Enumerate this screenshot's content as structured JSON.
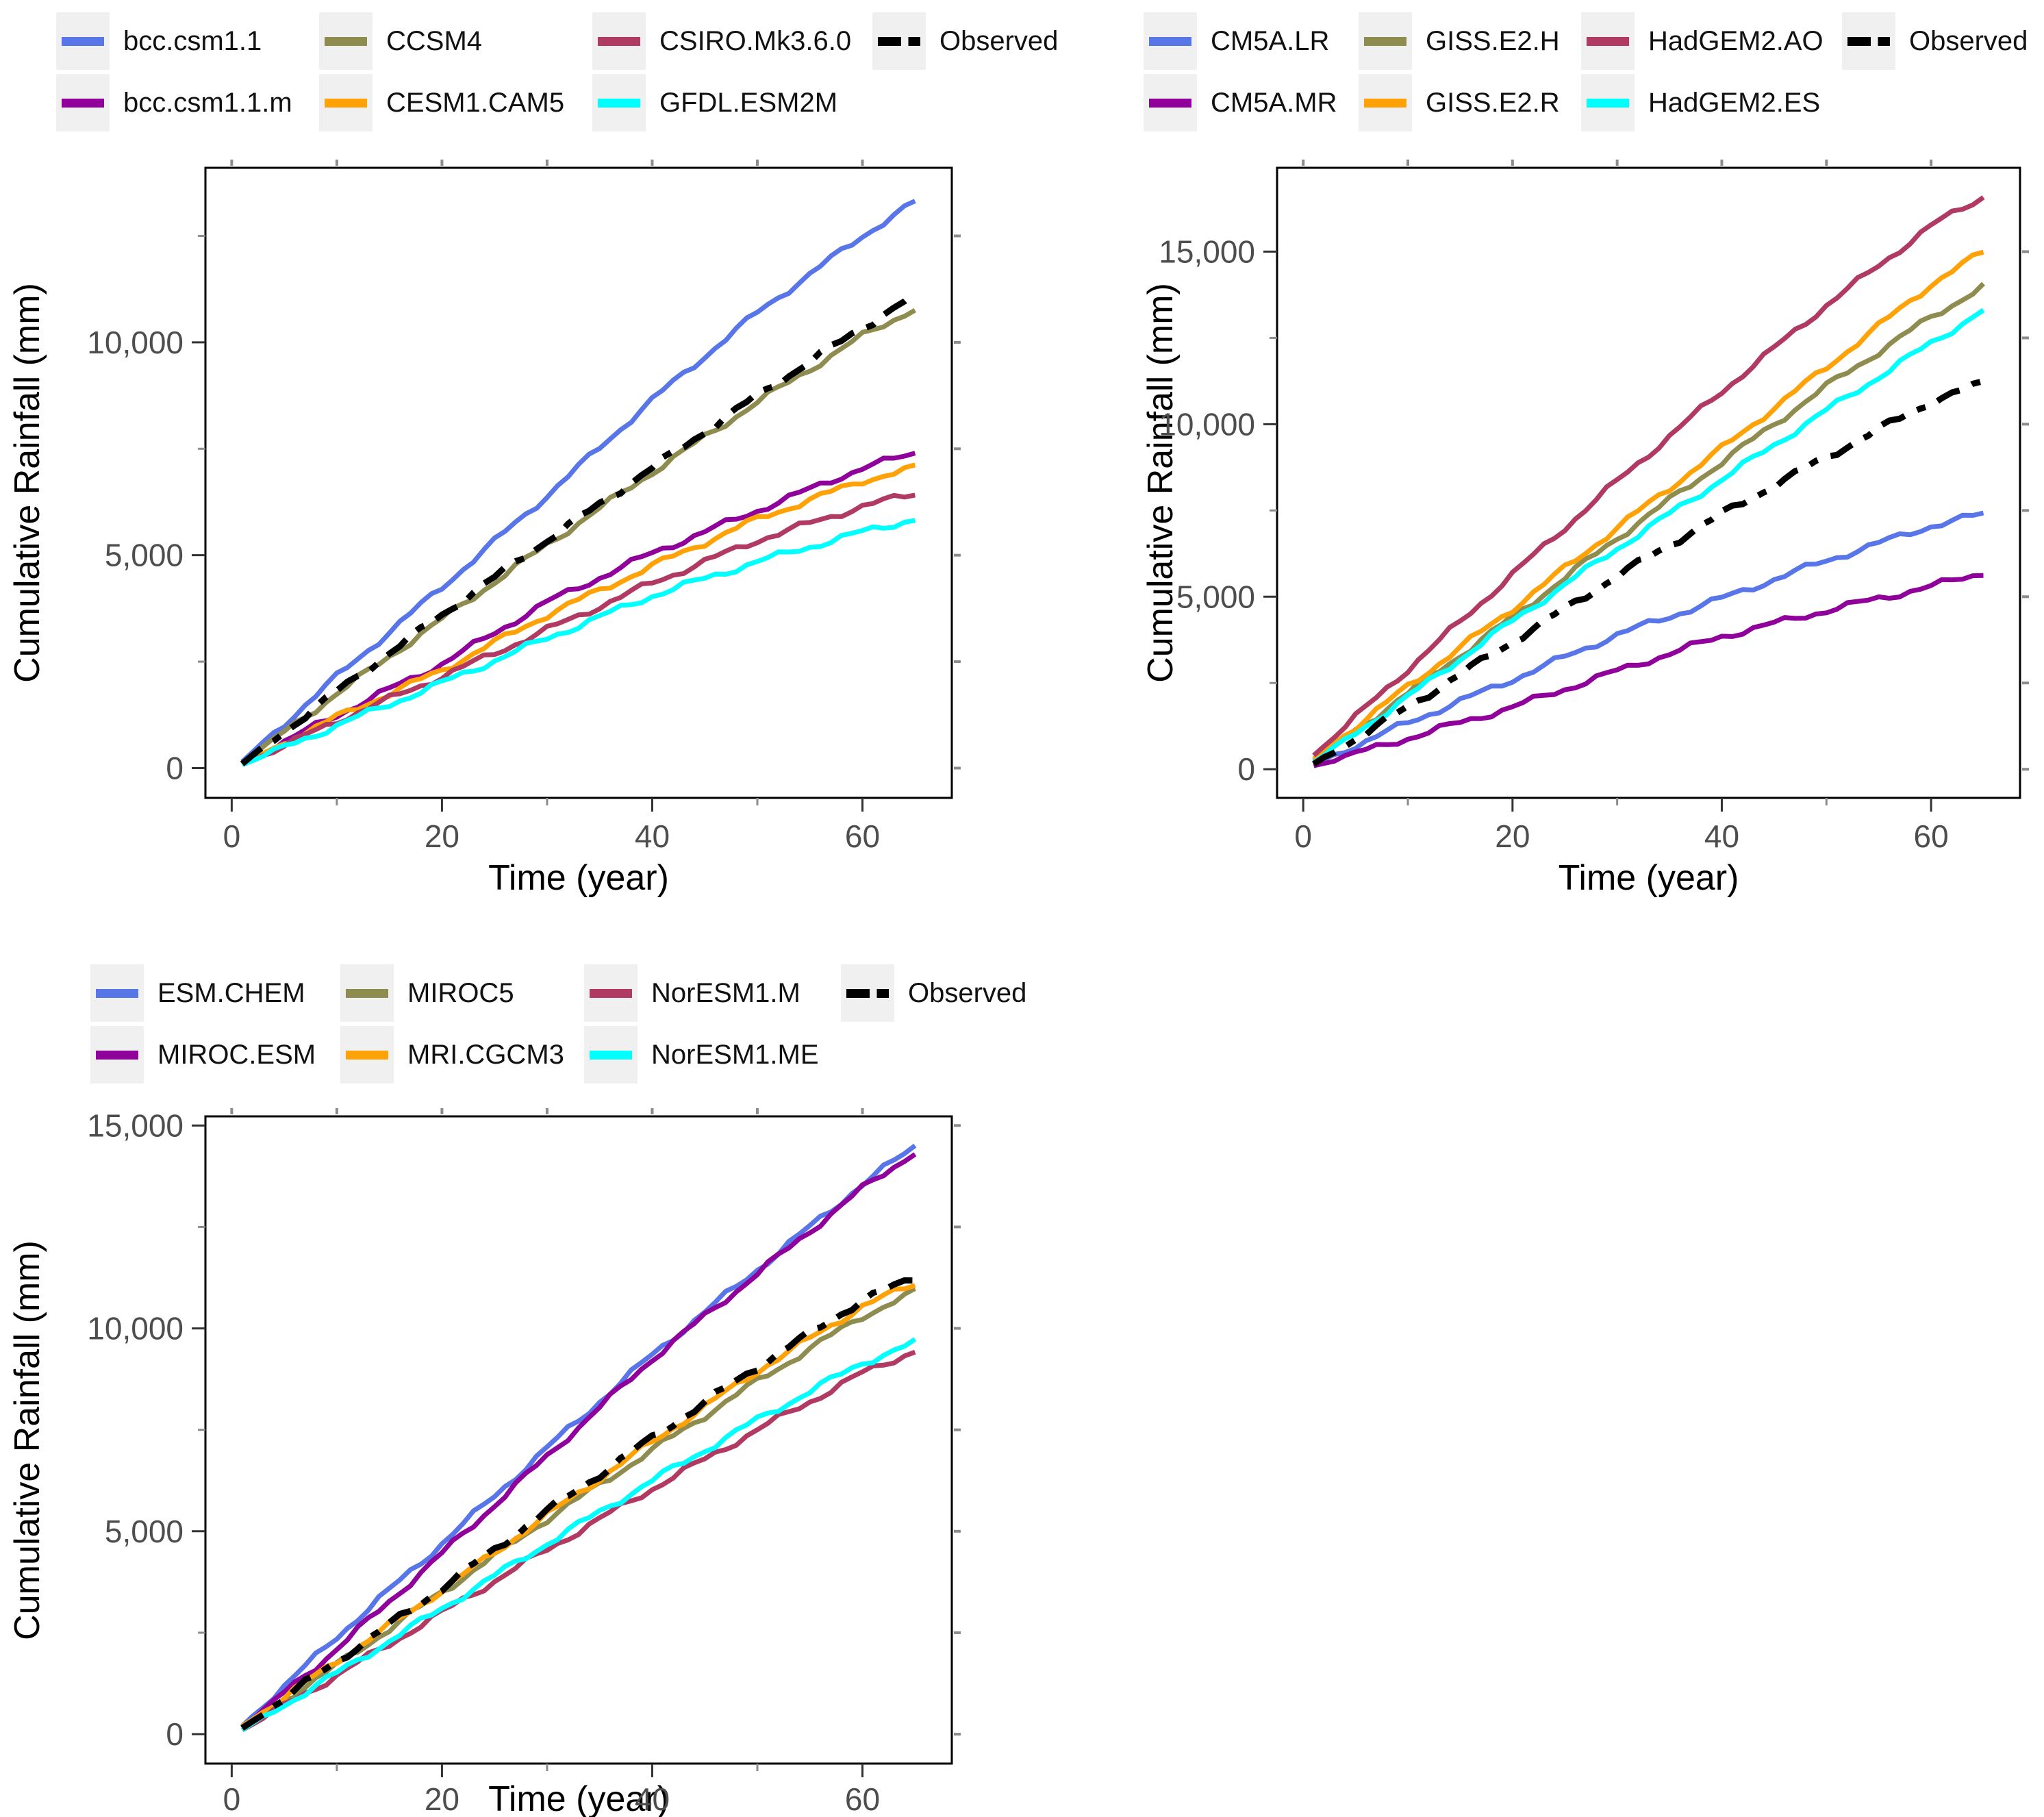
{
  "figure": {
    "background": "#ffffff"
  },
  "chart_data": [
    {
      "type": "line",
      "xlabel": "Time (year)",
      "ylabel": "Cumulative Rainfall (mm)",
      "x_ticks": [
        0,
        20,
        40,
        60
      ],
      "y_ticks": [
        0,
        5000,
        10000
      ],
      "y_tick_labels": [
        "0",
        "5,000",
        "10,000"
      ],
      "xlim": [
        -2.5,
        68.5
      ],
      "ylim": [
        -700,
        14100
      ],
      "grid": "off",
      "legend_position": "top",
      "legend_rows": [
        [
          "bcc.csm1.1",
          "CCSM4",
          "CSIRO.Mk3.6.0",
          "Observed"
        ],
        [
          "bcc.csm1.1.m",
          "CESM1.CAM5",
          "GFDL.ESM2M"
        ]
      ],
      "x": [
        1,
        10,
        20,
        30,
        40,
        50,
        60,
        65
      ],
      "series": [
        {
          "name": "bcc.csm1.1",
          "color": "#5876e8",
          "dash": "solid",
          "values": [
            150,
            2150,
            4250,
            6400,
            8650,
            10700,
            12500,
            13300
          ]
        },
        {
          "name": "bcc.csm1.1.m",
          "color": "#90009a",
          "dash": "solid",
          "values": [
            100,
            1250,
            2450,
            3900,
            5050,
            6050,
            7050,
            7400
          ]
        },
        {
          "name": "CCSM4",
          "color": "#8f8c50",
          "dash": "solid",
          "values": [
            120,
            1750,
            3500,
            5250,
            6950,
            8600,
            10150,
            10800
          ]
        },
        {
          "name": "CESM1.CAM5",
          "color": "#ffa207",
          "dash": "solid",
          "values": [
            100,
            1200,
            2300,
            3600,
            4750,
            5850,
            6750,
            7050
          ]
        },
        {
          "name": "CSIRO.Mk3.6.0",
          "color": "#b03a62",
          "dash": "solid",
          "values": [
            80,
            1100,
            2150,
            3250,
            4350,
            5350,
            6150,
            6450
          ]
        },
        {
          "name": "GFDL.ESM2M",
          "color": "#00ffff",
          "dash": "solid",
          "values": [
            80,
            1000,
            2000,
            3050,
            4050,
            4850,
            5550,
            5850
          ]
        },
        {
          "name": "Observed",
          "color": "#000000",
          "dash": "dashdot",
          "values": [
            100,
            1800,
            3600,
            5350,
            7050,
            8750,
            10350,
            11100
          ]
        }
      ]
    },
    {
      "type": "line",
      "xlabel": "Time (year)",
      "ylabel": "Cumulative Rainfall (mm)",
      "x_ticks": [
        0,
        20,
        40,
        60
      ],
      "y_ticks": [
        0,
        5000,
        10000,
        15000
      ],
      "y_tick_labels": [
        "0",
        "5,000",
        "10,000",
        "15,000"
      ],
      "xlim": [
        -2.5,
        68.5
      ],
      "ylim": [
        -830,
        17430
      ],
      "grid": "off",
      "legend_position": "top",
      "legend_rows": [
        [
          "CM5A.LR",
          "GISS.E2.H",
          "HadGEM2.AO",
          "Observed"
        ],
        [
          "CM5A.MR",
          "GISS.E2.R",
          "HadGEM2.ES"
        ]
      ],
      "x": [
        1,
        10,
        20,
        30,
        40,
        50,
        60,
        65
      ],
      "series": [
        {
          "name": "CM5A.LR",
          "color": "#5876e8",
          "dash": "solid",
          "values": [
            150,
            1350,
            2600,
            3900,
            4950,
            6050,
            7050,
            7400
          ]
        },
        {
          "name": "CM5A.MR",
          "color": "#90009a",
          "dash": "solid",
          "values": [
            100,
            900,
            1800,
            2850,
            3850,
            4600,
            5300,
            5700
          ]
        },
        {
          "name": "GISS.E2.H",
          "color": "#8f8c50",
          "dash": "solid",
          "values": [
            250,
            2200,
            4400,
            6700,
            8900,
            11100,
            13100,
            14000
          ]
        },
        {
          "name": "GISS.E2.R",
          "color": "#ffa207",
          "dash": "solid",
          "values": [
            300,
            2400,
            4650,
            7000,
            9300,
            11650,
            14050,
            15000
          ]
        },
        {
          "name": "HadGEM2.AO",
          "color": "#b03a62",
          "dash": "solid",
          "values": [
            400,
            2900,
            5650,
            8350,
            10950,
            13450,
            15750,
            16600
          ]
        },
        {
          "name": "HadGEM2.ES",
          "color": "#00ffff",
          "dash": "solid",
          "values": [
            200,
            2100,
            4300,
            6400,
            8400,
            10400,
            12350,
            13300
          ]
        },
        {
          "name": "Observed",
          "color": "#000000",
          "dash": "dashdot",
          "values": [
            150,
            1800,
            3700,
            5600,
            7400,
            9050,
            10650,
            11200
          ]
        }
      ]
    },
    {
      "type": "line",
      "xlabel": "Time (year)",
      "ylabel": "Cumulative Rainfall (mm)",
      "x_ticks": [
        0,
        20,
        40,
        60
      ],
      "y_ticks": [
        0,
        5000,
        10000,
        15000
      ],
      "y_tick_labels": [
        "0",
        "5,000",
        "10,000",
        "15,000"
      ],
      "xlim": [
        -2.5,
        68.5
      ],
      "ylim": [
        -725,
        15225
      ],
      "grid": "off",
      "legend_position": "top",
      "legend_rows": [
        [
          "ESM.CHEM",
          "MIROC5",
          "NorESM1.M",
          "Observed"
        ],
        [
          "MIROC.ESM",
          "MRI.CGCM3",
          "NorESM1.ME"
        ]
      ],
      "x": [
        1,
        10,
        20,
        30,
        40,
        50,
        60,
        65
      ],
      "series": [
        {
          "name": "ESM.CHEM",
          "color": "#5876e8",
          "dash": "solid",
          "values": [
            200,
            2400,
            4700,
            7050,
            9350,
            11450,
            13550,
            14500
          ]
        },
        {
          "name": "MIROC.ESM",
          "color": "#90009a",
          "dash": "solid",
          "values": [
            150,
            2100,
            4450,
            6850,
            9250,
            11350,
            13450,
            14350
          ]
        },
        {
          "name": "MIROC5",
          "color": "#8f8c50",
          "dash": "solid",
          "values": [
            150,
            1700,
            3500,
            5300,
            7000,
            8700,
            10300,
            10900
          ]
        },
        {
          "name": "MRI.CGCM3",
          "color": "#ffa207",
          "dash": "solid",
          "values": [
            200,
            1800,
            3550,
            5400,
            7200,
            8950,
            10550,
            11100
          ]
        },
        {
          "name": "NorESM1.M",
          "color": "#b03a62",
          "dash": "solid",
          "values": [
            100,
            1450,
            3000,
            4550,
            6050,
            7500,
            8900,
            9450
          ]
        },
        {
          "name": "NorESM1.ME",
          "color": "#00ffff",
          "dash": "solid",
          "values": [
            100,
            1500,
            3100,
            4700,
            6250,
            7750,
            9150,
            9650
          ]
        },
        {
          "name": "Observed",
          "color": "#000000",
          "dash": "dashdot",
          "values": [
            150,
            1800,
            3600,
            5500,
            7300,
            9050,
            10700,
            11250
          ]
        }
      ]
    }
  ],
  "charts": [
    {
      "xlabel": "Time (year)",
      "ylabel": "Cumulative Rainfall (mm)"
    },
    {
      "xlabel": "Time (year)",
      "ylabel": "Cumulative Rainfall (mm)"
    },
    {
      "xlabel": "Time (year)",
      "ylabel": "Cumulative Rainfall (mm)"
    }
  ],
  "colors": {
    "tick_label": "#4d4d4d",
    "axis_line": "#000000",
    "minor_tick": "#8c8c8c",
    "legend_key_bg": "#f0f0f0"
  }
}
